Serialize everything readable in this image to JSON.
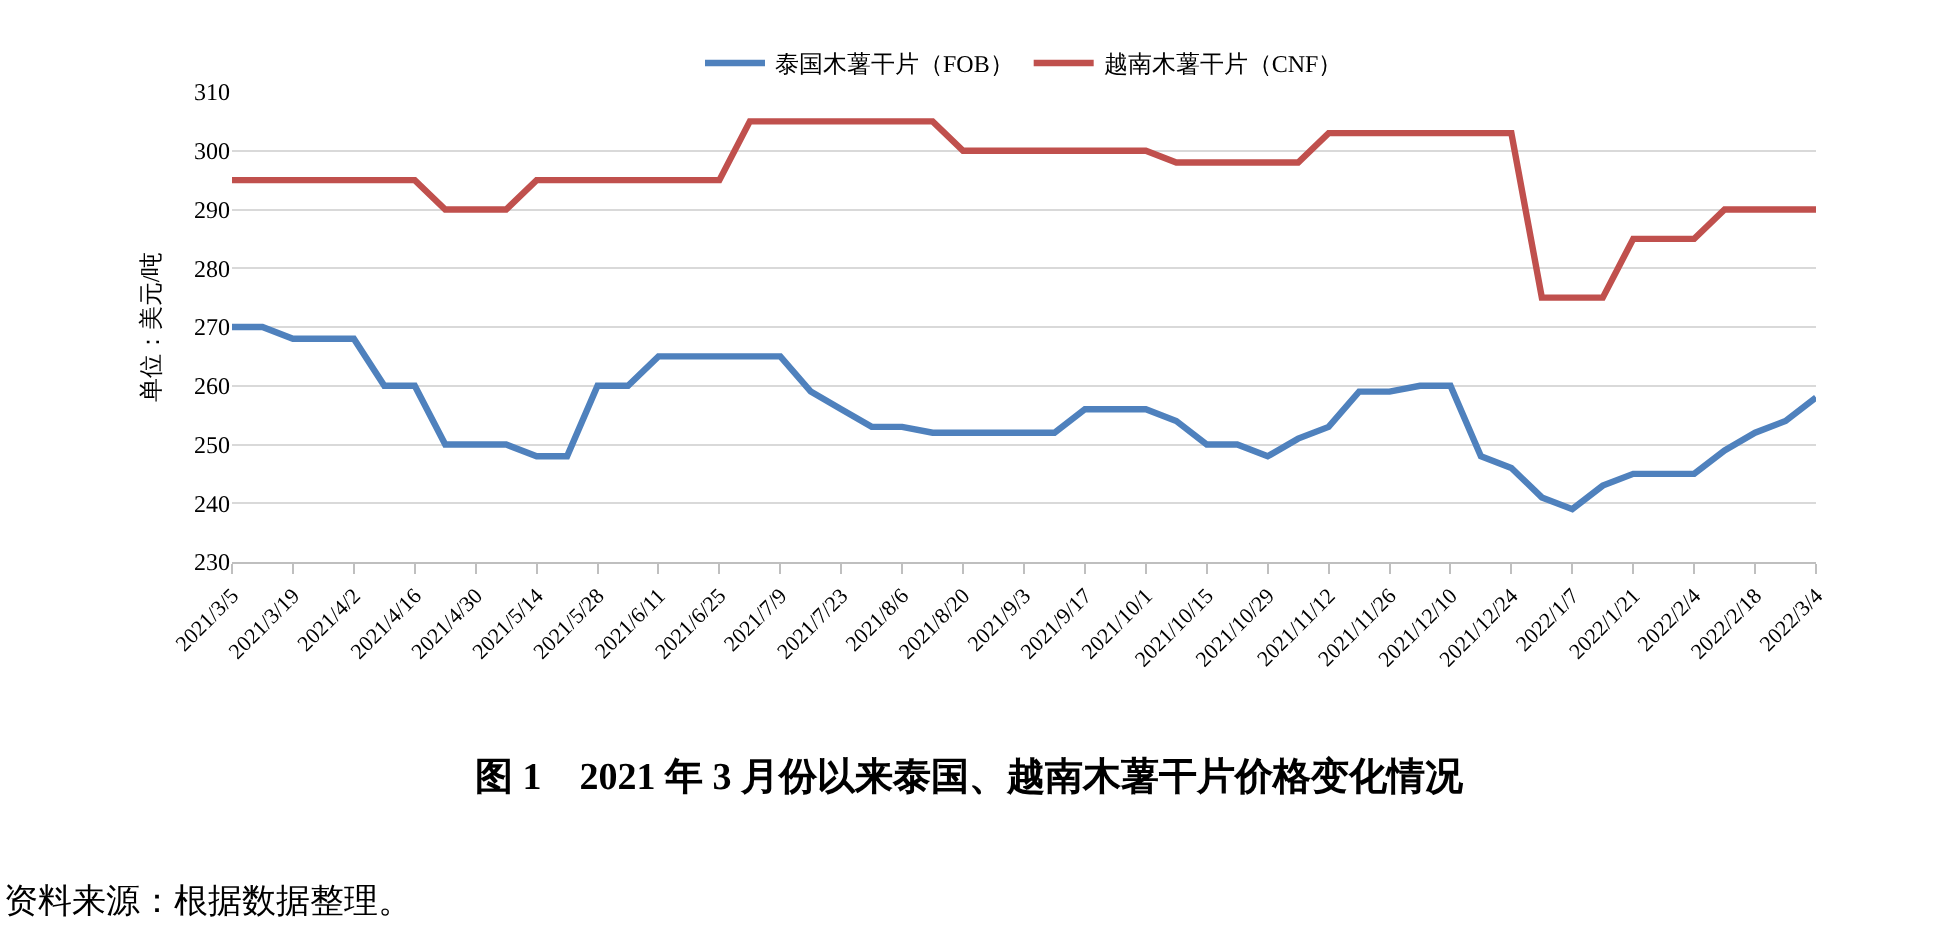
{
  "chart_data": {
    "type": "line",
    "title": "图 1　2021 年 3 月份以来泰国、越南木薯干片价格变化情况",
    "ylabel": "单位：美元/吨",
    "x": [
      "2021-03-05",
      "2021-03-12",
      "2021-03-19",
      "2021-03-26",
      "2021-04-02",
      "2021-04-09",
      "2021-04-16",
      "2021-04-23",
      "2021-04-30",
      "2021-05-07",
      "2021-05-14",
      "2021-05-21",
      "2021-05-28",
      "2021-06-04",
      "2021-06-11",
      "2021-06-18",
      "2021-06-25",
      "2021-07-02",
      "2021-07-09",
      "2021-07-16",
      "2021-07-23",
      "2021-07-30",
      "2021-08-06",
      "2021-08-13",
      "2021-08-20",
      "2021-08-27",
      "2021-09-03",
      "2021-09-10",
      "2021-09-17",
      "2021-09-24",
      "2021-10-01",
      "2021-10-08",
      "2021-10-15",
      "2021-10-22",
      "2021-10-29",
      "2021-11-05",
      "2021-11-12",
      "2021-11-19",
      "2021-11-26",
      "2021-12-03",
      "2021-12-10",
      "2021-12-17",
      "2021-12-24",
      "2021-12-31",
      "2022-01-07",
      "2022-01-14",
      "2022-01-21",
      "2022-01-28",
      "2022-02-04",
      "2022-02-11",
      "2022-02-18",
      "2022-02-25",
      "2022-03-04"
    ],
    "series": [
      {
        "name": "泰国木薯干片（FOB）",
        "color": "#4f81bd",
        "values": [
          270,
          270,
          268,
          268,
          268,
          260,
          260,
          250,
          250,
          250,
          248,
          248,
          260,
          260,
          265,
          265,
          265,
          265,
          265,
          259,
          256,
          253,
          253,
          252,
          252,
          252,
          252,
          252,
          256,
          256,
          256,
          254,
          250,
          250,
          248,
          251,
          253,
          259,
          259,
          260,
          260,
          248,
          246,
          241,
          239,
          243,
          245,
          245,
          245,
          249,
          252,
          254,
          258
        ]
      },
      {
        "name": "越南木薯干片（CNF）",
        "color": "#c0504d",
        "values": [
          295,
          295,
          295,
          295,
          295,
          295,
          295,
          290,
          290,
          290,
          295,
          295,
          295,
          295,
          295,
          295,
          295,
          305,
          305,
          305,
          305,
          305,
          305,
          305,
          300,
          300,
          300,
          300,
          300,
          300,
          300,
          298,
          298,
          298,
          298,
          298,
          303,
          303,
          303,
          303,
          303,
          303,
          303,
          275,
          275,
          275,
          285,
          285,
          285,
          290,
          290,
          290,
          290
        ]
      }
    ],
    "xlim": [
      "2021-03-05",
      "2022-03-04"
    ],
    "xticks": [
      {
        "value": "2021-03-05",
        "label": "2021/3/5"
      },
      {
        "value": "2021-03-19",
        "label": "2021/3/19"
      },
      {
        "value": "2021-04-02",
        "label": "2021/4/2"
      },
      {
        "value": "2021-04-16",
        "label": "2021/4/16"
      },
      {
        "value": "2021-04-30",
        "label": "2021/4/30"
      },
      {
        "value": "2021-05-14",
        "label": "2021/5/14"
      },
      {
        "value": "2021-05-28",
        "label": "2021/5/28"
      },
      {
        "value": "2021-06-11",
        "label": "2021/6/11"
      },
      {
        "value": "2021-06-25",
        "label": "2021/6/25"
      },
      {
        "value": "2021-07-09",
        "label": "2021/7/9"
      },
      {
        "value": "2021-07-23",
        "label": "2021/7/23"
      },
      {
        "value": "2021-08-06",
        "label": "2021/8/6"
      },
      {
        "value": "2021-08-20",
        "label": "2021/8/20"
      },
      {
        "value": "2021-09-03",
        "label": "2021/9/3"
      },
      {
        "value": "2021-09-17",
        "label": "2021/9/17"
      },
      {
        "value": "2021-10-01",
        "label": "2021/10/1"
      },
      {
        "value": "2021-10-15",
        "label": "2021/10/15"
      },
      {
        "value": "2021-10-29",
        "label": "2021/10/29"
      },
      {
        "value": "2021-11-12",
        "label": "2021/11/12"
      },
      {
        "value": "2021-11-26",
        "label": "2021/11/26"
      },
      {
        "value": "2021-12-10",
        "label": "2021/12/10"
      },
      {
        "value": "2021-12-24",
        "label": "2021/12/24"
      },
      {
        "value": "2022-01-07",
        "label": "2022/1/7"
      },
      {
        "value": "2022-01-21",
        "label": "2022/1/21"
      },
      {
        "value": "2022-02-04",
        "label": "2022/2/4"
      },
      {
        "value": "2022-02-18",
        "label": "2022/2/18"
      },
      {
        "value": "2022-03-04",
        "label": "2022/3/4"
      }
    ],
    "ylim": [
      230,
      310
    ],
    "yticks": [
      230,
      240,
      250,
      260,
      270,
      280,
      290,
      300,
      310
    ],
    "grid": "y",
    "legend": "top",
    "marker": "none",
    "line_style": "solid",
    "annotations": [
      "资料来源：根据数据整理。"
    ]
  }
}
